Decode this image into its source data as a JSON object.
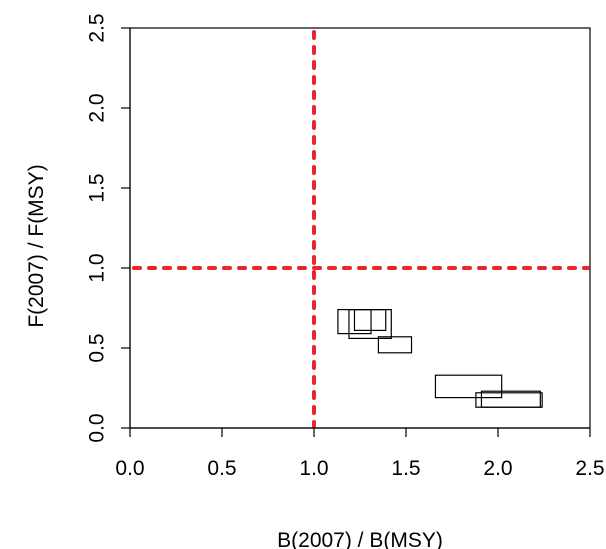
{
  "chart_data": {
    "type": "scatter",
    "title": "",
    "xlabel": "B(2007) / B(MSY)",
    "ylabel": "F(2007) / F(MSY)",
    "xlim": [
      0,
      2.5
    ],
    "ylim": [
      0,
      2.5
    ],
    "x_ticks": [
      "0.0",
      "0.5",
      "1.0",
      "1.5",
      "2.0",
      "2.5"
    ],
    "y_ticks": [
      "0.0",
      "0.5",
      "1.0",
      "1.5",
      "2.0",
      "2.5"
    ],
    "grid": false,
    "reference_lines": [
      {
        "orientation": "vertical",
        "value": 1.0,
        "style": "dotted",
        "color": "#e8262b"
      },
      {
        "orientation": "horizontal",
        "value": 1.0,
        "style": "dotted",
        "color": "#e8262b"
      }
    ],
    "boxes": [
      {
        "x": [
          1.13,
          1.31
        ],
        "y": [
          0.59,
          0.74
        ]
      },
      {
        "x": [
          1.19,
          1.42
        ],
        "y": [
          0.56,
          0.74
        ]
      },
      {
        "x": [
          1.22,
          1.39
        ],
        "y": [
          0.61,
          0.74
        ]
      },
      {
        "x": [
          1.35,
          1.53
        ],
        "y": [
          0.47,
          0.57
        ]
      },
      {
        "x": [
          1.66,
          2.02
        ],
        "y": [
          0.19,
          0.33
        ]
      },
      {
        "x": [
          1.88,
          2.24
        ],
        "y": [
          0.13,
          0.22
        ]
      },
      {
        "x": [
          1.91,
          2.23
        ],
        "y": [
          0.13,
          0.23
        ]
      }
    ]
  }
}
